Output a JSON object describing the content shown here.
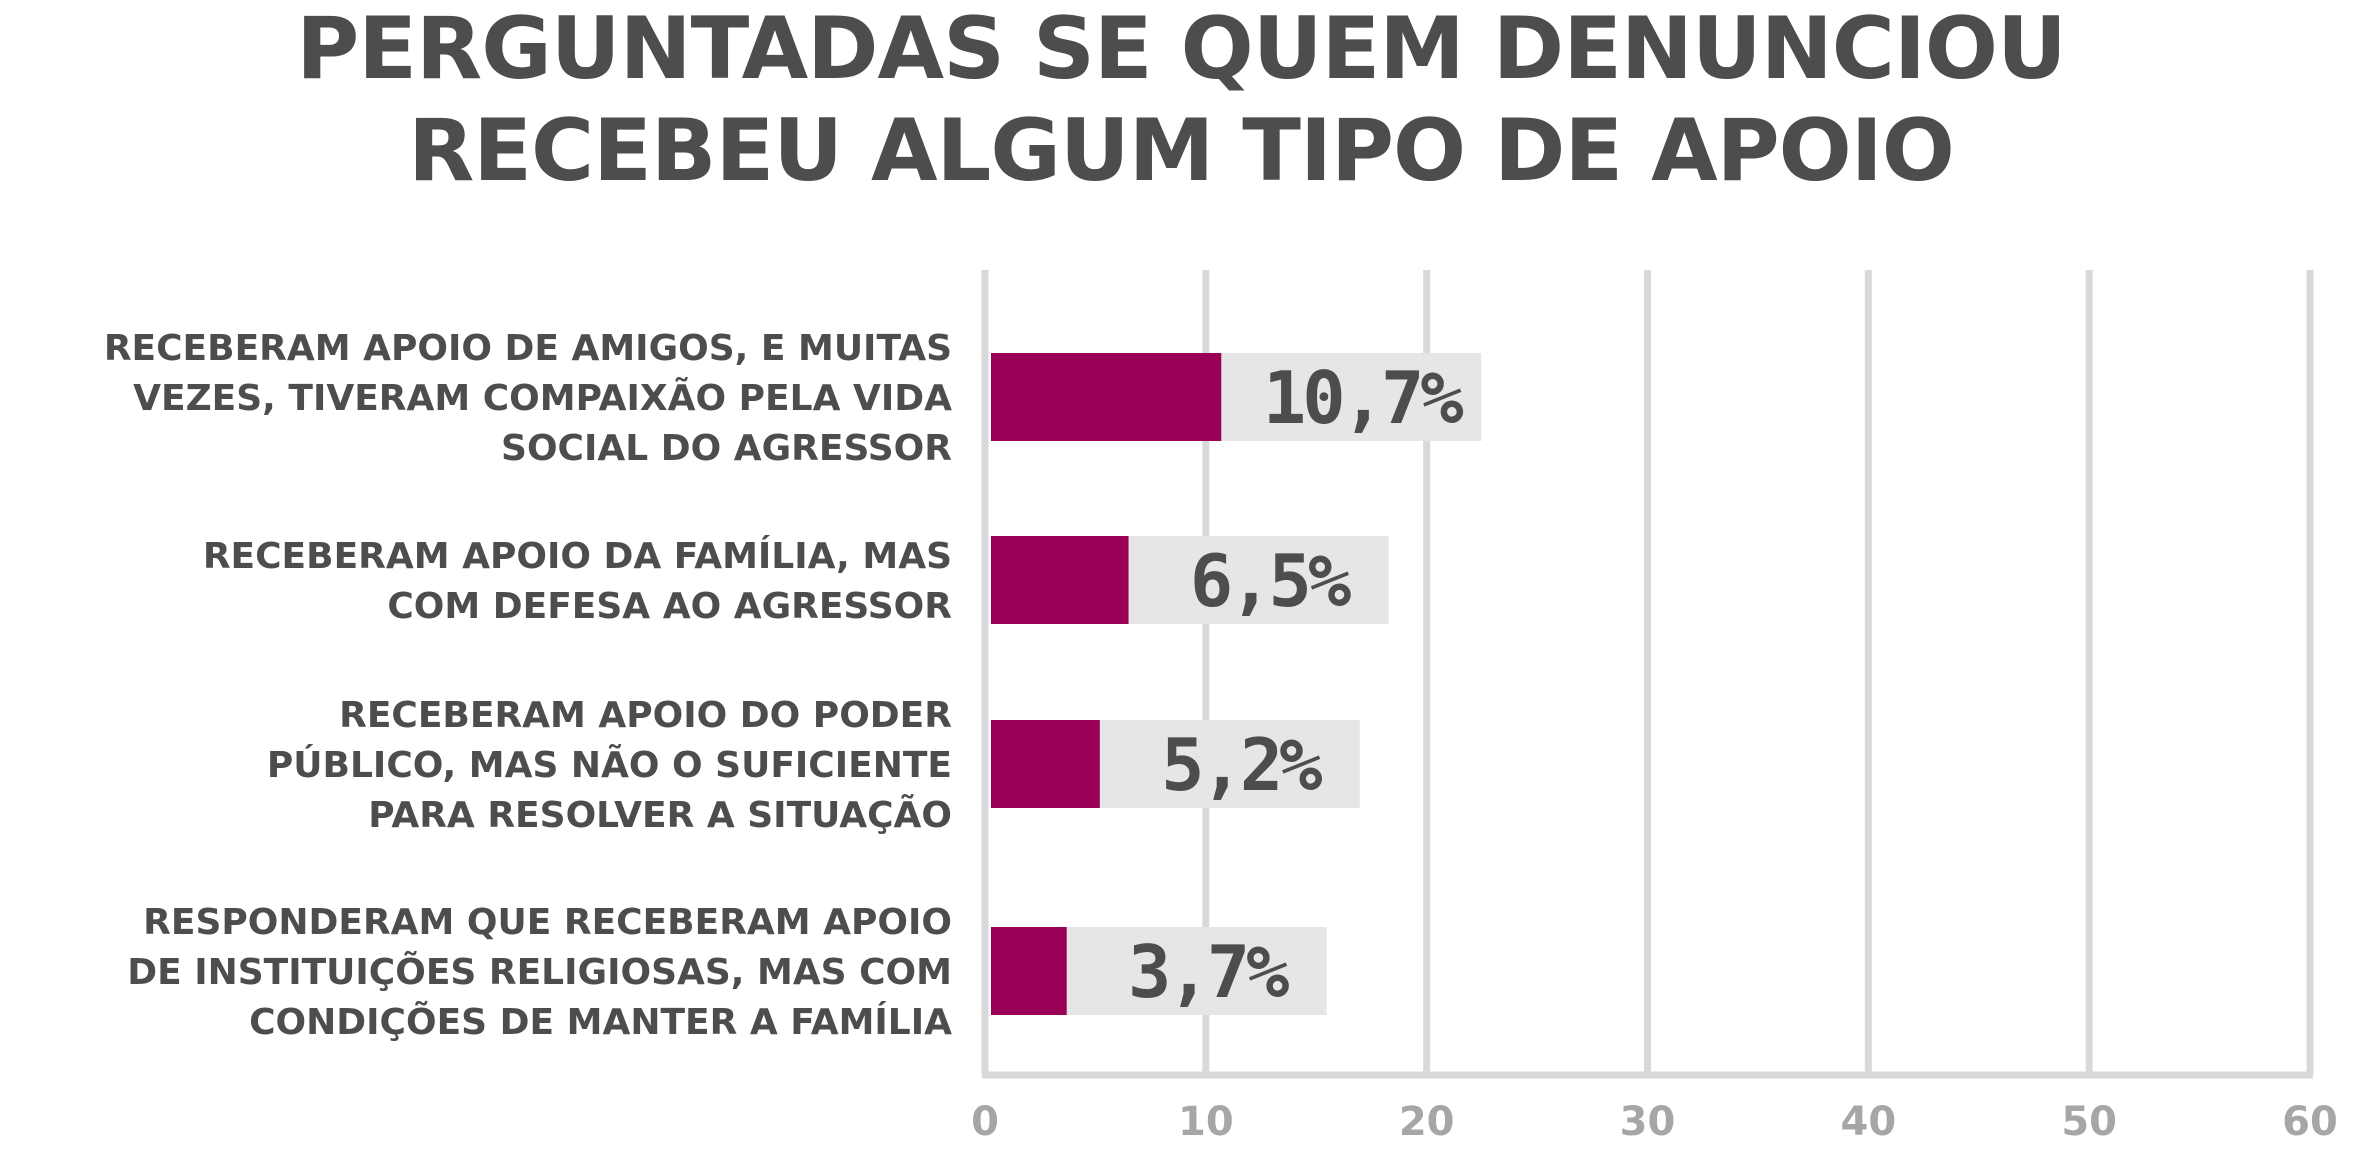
{
  "title": {
    "line1": "PERGUNTADAS SE QUEM DENUNCIOU",
    "line2": "RECEBEU ALGUM TIPO DE APOIO"
  },
  "chart_data": {
    "type": "bar",
    "orientation": "horizontal",
    "title": "PERGUNTADAS SE QUEM DENUNCIOU RECEBEU ALGUM TIPO DE APOIO",
    "categories": [
      [
        "RECEBERAM APOIO DE AMIGOS, E MUITAS",
        "VEZES, TIVERAM COMPAIXÃO PELA VIDA",
        "SOCIAL DO AGRESSOR"
      ],
      [
        "RECEBERAM APOIO DA FAMÍLIA, MAS",
        "COM DEFESA AO AGRESSOR"
      ],
      [
        "RECEBERAM APOIO DO PODER",
        "PÚBLICO, MAS NÃO O SUFICIENTE",
        "PARA RESOLVER A SITUAÇÃO"
      ],
      [
        "RESPONDERAM QUE RECEBERAM APOIO",
        "DE INSTITUIÇÕES RELIGIOSAS, MAS COM",
        "CONDIÇÕES DE MANTER A FAMÍLIA"
      ]
    ],
    "values": [
      10.7,
      6.5,
      5.2,
      3.7
    ],
    "value_labels": [
      "10,7%",
      "6,5%",
      "5,2%",
      "3,7%"
    ],
    "x_ticks": [
      "0",
      "10",
      "20",
      "30",
      "40",
      "50",
      "60"
    ],
    "xlim": [
      0,
      60
    ],
    "grid": true,
    "colors": {
      "bar": "#9a0056",
      "label_background": "#e6e6e6",
      "grid": "#d9d9d9",
      "text": "#4d4d4d",
      "tick": "#a6a6a6"
    }
  }
}
